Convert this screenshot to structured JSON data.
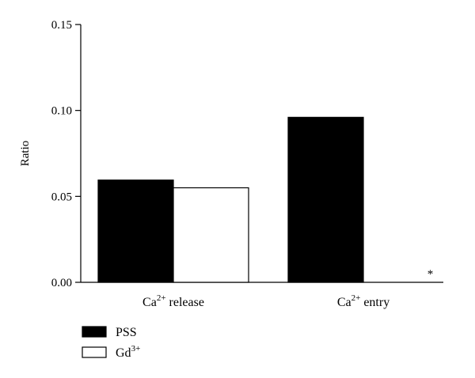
{
  "chart_data": {
    "type": "bar",
    "title": "",
    "xlabel": "",
    "ylabel": "Ratio",
    "ylim": [
      0,
      0.15
    ],
    "yticks": [
      "0.00",
      "0.05",
      "0.10",
      "0.15"
    ],
    "categories": [
      {
        "base": "Ca",
        "sup": "2+",
        "rest": " release"
      },
      {
        "base": "Ca",
        "sup": "2+",
        "rest": " entry"
      }
    ],
    "series": [
      {
        "name": {
          "base": "PSS",
          "sup": ""
        },
        "fill": "#000000",
        "values": [
          0.0595,
          0.096
        ]
      },
      {
        "name": {
          "base": "Gd",
          "sup": "3+"
        },
        "fill": "#ffffff",
        "values": [
          0.055,
          0.0
        ]
      }
    ],
    "annotations": [
      {
        "category_index": 1,
        "series_index": 1,
        "text": "*"
      }
    ],
    "grid": false,
    "legend_position": "bottom-left"
  }
}
